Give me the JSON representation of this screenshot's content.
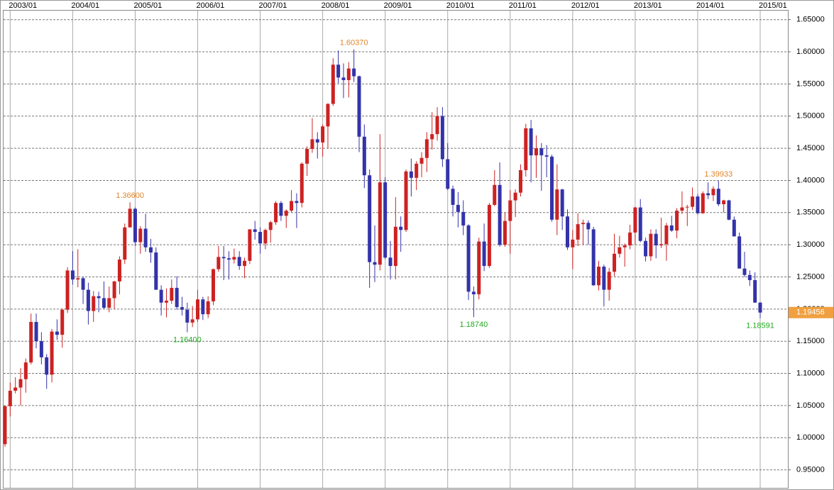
{
  "chart_data": {
    "type": "candlestick",
    "up_color": "#cc2222",
    "down_color": "#3333aa",
    "high_label_color": "#e0862a",
    "low_label_color": "#22aa22",
    "ylim": [
      0.922,
      1.664
    ],
    "yticks": [
      {
        "value": 0.95,
        "label": "0.95000"
      },
      {
        "value": 1.0,
        "label": "1.00000"
      },
      {
        "value": 1.05,
        "label": "1.05000"
      },
      {
        "value": 1.1,
        "label": "1.10000"
      },
      {
        "value": 1.15,
        "label": "1.15000"
      },
      {
        "value": 1.2,
        "label": "1.20000"
      },
      {
        "value": 1.25,
        "label": "1.25000"
      },
      {
        "value": 1.3,
        "label": "1.30000"
      },
      {
        "value": 1.35,
        "label": "1.35000"
      },
      {
        "value": 1.4,
        "label": "1.40000"
      },
      {
        "value": 1.45,
        "label": "1.45000"
      },
      {
        "value": 1.5,
        "label": "1.50000"
      },
      {
        "value": 1.55,
        "label": "1.55000"
      },
      {
        "value": 1.6,
        "label": "1.60000"
      },
      {
        "value": 1.65,
        "label": "1.65000"
      }
    ],
    "xlim": [
      "2002/12",
      "2015/01"
    ],
    "xticks": [
      "2003/01",
      "2004/01",
      "2005/01",
      "2006/01",
      "2007/01",
      "2008/01",
      "2009/01",
      "2010/01",
      "2011/01",
      "2012/01",
      "2013/01",
      "2014/01",
      "2015/01"
    ],
    "x": [
      "2002/12",
      "2003/01",
      "2003/02",
      "2003/03",
      "2003/04",
      "2003/05",
      "2003/06",
      "2003/07",
      "2003/08",
      "2003/09",
      "2003/10",
      "2003/11",
      "2003/12",
      "2004/01",
      "2004/02",
      "2004/03",
      "2004/04",
      "2004/05",
      "2004/06",
      "2004/07",
      "2004/08",
      "2004/09",
      "2004/10",
      "2004/11",
      "2004/12",
      "2005/01",
      "2005/02",
      "2005/03",
      "2005/04",
      "2005/05",
      "2005/06",
      "2005/07",
      "2005/08",
      "2005/09",
      "2005/10",
      "2005/11",
      "2005/12",
      "2006/01",
      "2006/02",
      "2006/03",
      "2006/04",
      "2006/05",
      "2006/06",
      "2006/07",
      "2006/08",
      "2006/09",
      "2006/10",
      "2006/11",
      "2006/12",
      "2007/01",
      "2007/02",
      "2007/03",
      "2007/04",
      "2007/05",
      "2007/06",
      "2007/07",
      "2007/08",
      "2007/09",
      "2007/10",
      "2007/11",
      "2007/12",
      "2008/01",
      "2008/02",
      "2008/03",
      "2008/04",
      "2008/05",
      "2008/06",
      "2008/07",
      "2008/08",
      "2008/09",
      "2008/10",
      "2008/11",
      "2008/12",
      "2009/01",
      "2009/02",
      "2009/03",
      "2009/04",
      "2009/05",
      "2009/06",
      "2009/07",
      "2009/08",
      "2009/09",
      "2009/10",
      "2009/11",
      "2009/12",
      "2010/01",
      "2010/02",
      "2010/03",
      "2010/04",
      "2010/05",
      "2010/06",
      "2010/07",
      "2010/08",
      "2010/09",
      "2010/10",
      "2010/11",
      "2010/12",
      "2011/01",
      "2011/02",
      "2011/03",
      "2011/04",
      "2011/05",
      "2011/06",
      "2011/07",
      "2011/08",
      "2011/09",
      "2011/10",
      "2011/11",
      "2011/12",
      "2012/01",
      "2012/02",
      "2012/03",
      "2012/04",
      "2012/05",
      "2012/06",
      "2012/07",
      "2012/08",
      "2012/09",
      "2012/10",
      "2012/11",
      "2012/12",
      "2013/01",
      "2013/02",
      "2013/03",
      "2013/04",
      "2013/05",
      "2013/06",
      "2013/07",
      "2013/08",
      "2013/09",
      "2013/10",
      "2013/11",
      "2013/12",
      "2014/01",
      "2014/02",
      "2014/03",
      "2014/04",
      "2014/05",
      "2014/06",
      "2014/07",
      "2014/08",
      "2014/09",
      "2014/10",
      "2014/11",
      "2014/12",
      "2015/01"
    ],
    "open": [
      0.99,
      1.049,
      1.073,
      1.078,
      1.091,
      1.117,
      1.18,
      1.15,
      1.125,
      1.098,
      1.165,
      1.16,
      1.199,
      1.26,
      1.246,
      1.248,
      1.23,
      1.197,
      1.22,
      1.217,
      1.202,
      1.217,
      1.243,
      1.277,
      1.327,
      1.356,
      1.304,
      1.325,
      1.296,
      1.288,
      1.23,
      1.21,
      1.213,
      1.233,
      1.203,
      1.199,
      1.179,
      1.184,
      1.215,
      1.192,
      1.212,
      1.262,
      1.281,
      1.279,
      1.277,
      1.281,
      1.267,
      1.275,
      1.324,
      1.32,
      1.302,
      1.323,
      1.335,
      1.365,
      1.345,
      1.353,
      1.368,
      1.365,
      1.426,
      1.449,
      1.464,
      1.459,
      1.484,
      1.519,
      1.58,
      1.56,
      1.556,
      1.574,
      1.562,
      1.468,
      1.408,
      1.273,
      1.269,
      1.397,
      1.28,
      1.267,
      1.328,
      1.323,
      1.414,
      1.404,
      1.426,
      1.435,
      1.464,
      1.472,
      1.5,
      1.433,
      1.387,
      1.362,
      1.351,
      1.33,
      1.227,
      1.223,
      1.305,
      1.267,
      1.362,
      1.393,
      1.3,
      1.337,
      1.369,
      1.381,
      1.416,
      1.481,
      1.439,
      1.45,
      1.439,
      1.437,
      1.339,
      1.386,
      1.344,
      1.296,
      1.308,
      1.332,
      1.334,
      1.324,
      1.237,
      1.266,
      1.23,
      1.258,
      1.286,
      1.296,
      1.299,
      1.319,
      1.358,
      1.306,
      1.282,
      1.317,
      1.299,
      1.301,
      1.33,
      1.322,
      1.353,
      1.358,
      1.359,
      1.375,
      1.349,
      1.38,
      1.377,
      1.387,
      1.363,
      1.369,
      1.339,
      1.313,
      1.263,
      1.253,
      1.245,
      1.21
    ],
    "high": [
      1.05,
      1.086,
      1.094,
      1.108,
      1.123,
      1.193,
      1.193,
      1.164,
      1.13,
      1.169,
      1.184,
      1.201,
      1.265,
      1.29,
      1.293,
      1.25,
      1.241,
      1.228,
      1.227,
      1.243,
      1.235,
      1.244,
      1.282,
      1.333,
      1.366,
      1.358,
      1.329,
      1.348,
      1.309,
      1.296,
      1.237,
      1.232,
      1.246,
      1.251,
      1.219,
      1.21,
      1.205,
      1.23,
      1.219,
      1.22,
      1.263,
      1.298,
      1.298,
      1.29,
      1.294,
      1.29,
      1.28,
      1.324,
      1.337,
      1.327,
      1.325,
      1.337,
      1.368,
      1.368,
      1.355,
      1.385,
      1.38,
      1.428,
      1.453,
      1.497,
      1.475,
      1.487,
      1.52,
      1.59,
      1.602,
      1.582,
      1.584,
      1.6037,
      1.563,
      1.487,
      1.417,
      1.33,
      1.472,
      1.405,
      1.306,
      1.374,
      1.344,
      1.417,
      1.434,
      1.43,
      1.444,
      1.475,
      1.506,
      1.514,
      1.514,
      1.458,
      1.392,
      1.382,
      1.369,
      1.332,
      1.235,
      1.311,
      1.333,
      1.365,
      1.416,
      1.428,
      1.35,
      1.385,
      1.386,
      1.425,
      1.488,
      1.494,
      1.47,
      1.458,
      1.455,
      1.44,
      1.425,
      1.387,
      1.355,
      1.323,
      1.349,
      1.339,
      1.338,
      1.328,
      1.275,
      1.269,
      1.264,
      1.317,
      1.314,
      1.302,
      1.331,
      1.359,
      1.371,
      1.311,
      1.324,
      1.324,
      1.342,
      1.334,
      1.345,
      1.357,
      1.383,
      1.362,
      1.389,
      1.379,
      1.383,
      1.397,
      1.391,
      1.3993,
      1.37,
      1.37,
      1.344,
      1.319,
      1.289,
      1.26,
      1.257,
      1.211
    ],
    "low": [
      0.986,
      1.033,
      1.069,
      1.05,
      1.07,
      1.114,
      1.139,
      1.114,
      1.076,
      1.086,
      1.152,
      1.14,
      1.194,
      1.238,
      1.234,
      1.208,
      1.176,
      1.18,
      1.195,
      1.2,
      1.195,
      1.2,
      1.223,
      1.27,
      1.327,
      1.298,
      1.286,
      1.289,
      1.272,
      1.23,
      1.19,
      1.187,
      1.208,
      1.199,
      1.19,
      1.164,
      1.172,
      1.18,
      1.183,
      1.186,
      1.206,
      1.258,
      1.245,
      1.246,
      1.271,
      1.261,
      1.248,
      1.27,
      1.308,
      1.286,
      1.293,
      1.303,
      1.331,
      1.337,
      1.326,
      1.35,
      1.326,
      1.358,
      1.407,
      1.443,
      1.434,
      1.437,
      1.45,
      1.516,
      1.551,
      1.528,
      1.529,
      1.553,
      1.444,
      1.388,
      1.233,
      1.242,
      1.26,
      1.278,
      1.246,
      1.246,
      1.289,
      1.32,
      1.375,
      1.385,
      1.405,
      1.413,
      1.448,
      1.462,
      1.421,
      1.385,
      1.344,
      1.327,
      1.315,
      1.214,
      1.1874,
      1.215,
      1.259,
      1.264,
      1.36,
      1.297,
      1.297,
      1.286,
      1.343,
      1.375,
      1.406,
      1.397,
      1.404,
      1.384,
      1.405,
      1.336,
      1.315,
      1.323,
      1.292,
      1.262,
      1.298,
      1.3,
      1.3,
      1.236,
      1.229,
      1.204,
      1.213,
      1.251,
      1.28,
      1.266,
      1.293,
      1.3,
      1.304,
      1.274,
      1.275,
      1.279,
      1.295,
      1.275,
      1.32,
      1.31,
      1.348,
      1.329,
      1.354,
      1.347,
      1.348,
      1.371,
      1.368,
      1.36,
      1.35,
      1.338,
      1.313,
      1.263,
      1.25,
      1.236,
      1.21,
      1.18591
    ],
    "close": [
      1.049,
      1.073,
      1.078,
      1.091,
      1.117,
      1.18,
      1.15,
      1.125,
      1.098,
      1.165,
      1.16,
      1.199,
      1.26,
      1.246,
      1.248,
      1.23,
      1.197,
      1.22,
      1.217,
      1.202,
      1.217,
      1.243,
      1.277,
      1.327,
      1.356,
      1.304,
      1.325,
      1.296,
      1.288,
      1.23,
      1.21,
      1.213,
      1.233,
      1.203,
      1.199,
      1.179,
      1.184,
      1.215,
      1.192,
      1.212,
      1.262,
      1.281,
      1.279,
      1.277,
      1.281,
      1.267,
      1.275,
      1.324,
      1.32,
      1.302,
      1.323,
      1.335,
      1.365,
      1.345,
      1.353,
      1.368,
      1.365,
      1.426,
      1.449,
      1.464,
      1.459,
      1.484,
      1.519,
      1.58,
      1.56,
      1.556,
      1.574,
      1.562,
      1.468,
      1.408,
      1.273,
      1.269,
      1.397,
      1.28,
      1.267,
      1.328,
      1.323,
      1.414,
      1.404,
      1.426,
      1.435,
      1.464,
      1.472,
      1.5,
      1.433,
      1.387,
      1.362,
      1.351,
      1.33,
      1.227,
      1.223,
      1.305,
      1.267,
      1.362,
      1.393,
      1.3,
      1.337,
      1.369,
      1.381,
      1.416,
      1.481,
      1.439,
      1.45,
      1.439,
      1.437,
      1.339,
      1.386,
      1.344,
      1.296,
      1.308,
      1.332,
      1.334,
      1.324,
      1.237,
      1.266,
      1.23,
      1.258,
      1.286,
      1.296,
      1.299,
      1.319,
      1.358,
      1.306,
      1.282,
      1.317,
      1.299,
      1.301,
      1.33,
      1.322,
      1.353,
      1.358,
      1.359,
      1.375,
      1.349,
      1.38,
      1.377,
      1.387,
      1.363,
      1.369,
      1.339,
      1.313,
      1.263,
      1.253,
      1.245,
      1.21,
      1.19456
    ],
    "annotations": [
      {
        "label": "1.36600",
        "value": 1.366,
        "x": "2004/12",
        "kind": "high"
      },
      {
        "label": "1.16400",
        "value": 1.164,
        "x": "2005/11",
        "kind": "low"
      },
      {
        "label": "1.60370",
        "value": 1.6037,
        "x": "2008/07",
        "kind": "high"
      },
      {
        "label": "1.18740",
        "value": 1.1874,
        "x": "2010/06",
        "kind": "low"
      },
      {
        "label": "1.39933",
        "value": 1.39933,
        "x": "2014/05",
        "kind": "high"
      },
      {
        "label": "1.18591",
        "value": 1.18591,
        "x": "2015/01",
        "kind": "low"
      }
    ],
    "last_price": {
      "value": 1.19456,
      "label": "1.19456",
      "color": "#f0a040"
    }
  }
}
